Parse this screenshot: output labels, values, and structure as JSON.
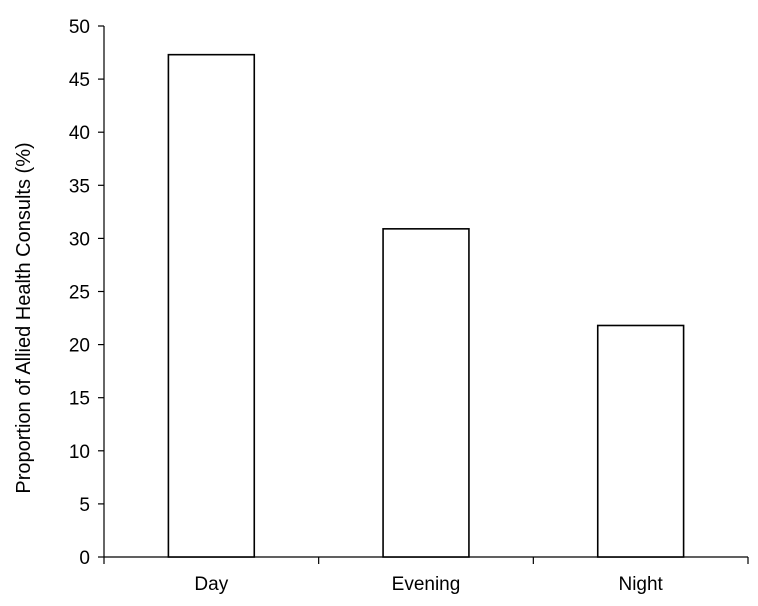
{
  "chart_data": {
    "type": "bar",
    "title": "",
    "xlabel": "",
    "ylabel": "Proportion of Allied Health Consults (%)",
    "categories": [
      "Day",
      "Evening",
      "Night"
    ],
    "values": [
      47.3,
      30.9,
      21.8
    ],
    "ylim": [
      0,
      50
    ],
    "yticks": [
      0,
      5,
      10,
      15,
      20,
      25,
      30,
      35,
      40,
      45,
      50
    ],
    "ytick_labels": [
      "0",
      "5",
      "10",
      "15",
      "20",
      "25",
      "30",
      "35",
      "40",
      "45",
      "50"
    ],
    "grid": false,
    "legend": "none",
    "bar_fill": "#ffffff",
    "bar_stroke": "#000000",
    "axis_color": "#000000"
  }
}
